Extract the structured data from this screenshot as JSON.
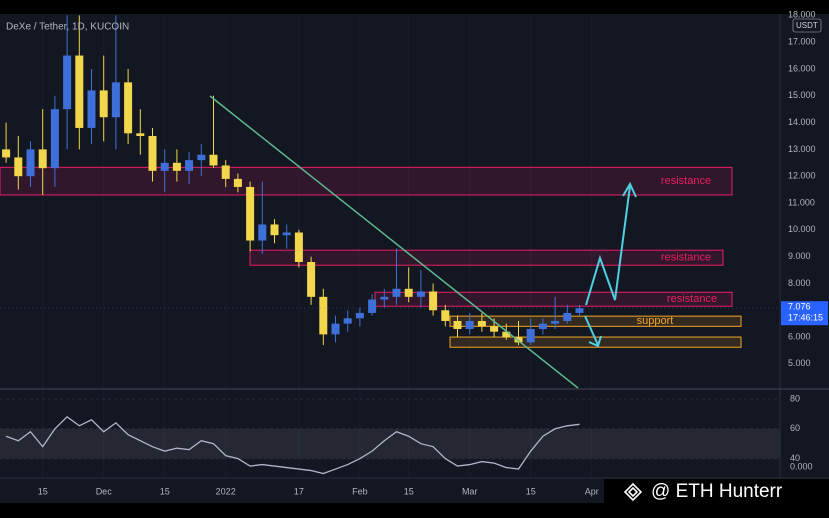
{
  "header": {
    "symbol": "DeXe / Tether, 1D, KUCOIN"
  },
  "watermark": "@ ETH Hunterr",
  "chart_data": {
    "type": "candlestick",
    "categories": [
      null,
      null,
      null,
      "15",
      null,
      null,
      null,
      null,
      "Dec",
      null,
      null,
      null,
      null,
      "15",
      null,
      null,
      null,
      null,
      "2022",
      null,
      null,
      null,
      null,
      null,
      "17",
      null,
      null,
      null,
      null,
      "Feb",
      null,
      null,
      null,
      "15",
      null,
      null,
      null,
      null,
      "Mar",
      null,
      null,
      null,
      null,
      "15",
      null,
      null,
      null,
      null,
      "Apr",
      null
    ],
    "open": [
      13,
      12.7,
      12,
      13,
      12.3,
      14.5,
      16.5,
      13.8,
      15.2,
      14.2,
      15.5,
      13.6,
      13.5,
      12.2,
      12.5,
      12.2,
      12.6,
      12.8,
      12.4,
      11.9,
      11.6,
      9.6,
      10.2,
      9.8,
      9.9,
      8.8,
      7.5,
      6.1,
      6.5,
      6.7,
      6.9,
      7.4,
      7.5,
      7.8,
      7.5,
      7.7,
      7.0,
      6.6,
      6.3,
      6.6,
      6.4,
      6.2,
      6.0,
      5.8,
      6.3,
      6.5,
      6.6,
      6.9,
      null,
      null
    ],
    "high": [
      14,
      13.5,
      13.3,
      14.5,
      15,
      18,
      18,
      16,
      16.5,
      18,
      16,
      14.5,
      13.8,
      13,
      13,
      12.9,
      13.2,
      15,
      12.6,
      12.1,
      11.8,
      11.8,
      10.4,
      10.2,
      10,
      9,
      7.8,
      6.8,
      7.0,
      7.1,
      7.6,
      7.8,
      9.3,
      8.6,
      8.5,
      8,
      7.2,
      6.8,
      6.9,
      6.9,
      6.7,
      6.5,
      6.6,
      6.7,
      6.7,
      7.5,
      7.2,
      7.2,
      null,
      null
    ],
    "low": [
      12.5,
      11.5,
      11.6,
      11.3,
      11.6,
      13,
      13,
      13.2,
      13.3,
      13,
      13.2,
      12.8,
      11.8,
      11.4,
      11.8,
      11.7,
      12.0,
      12.3,
      11.6,
      11.4,
      9.2,
      9.1,
      9.5,
      9.3,
      8.6,
      7.2,
      5.7,
      5.8,
      6.2,
      6.4,
      6.8,
      7.1,
      7.2,
      7.3,
      7.1,
      6.8,
      6.4,
      6.0,
      6.1,
      6.2,
      6.0,
      5.9,
      5.7,
      5.7,
      6.1,
      6.3,
      6.5,
      6.8,
      null,
      null
    ],
    "close": [
      12.7,
      12.0,
      13.0,
      12.3,
      14.5,
      16.5,
      13.8,
      15.2,
      14.2,
      15.5,
      13.6,
      13.5,
      12.2,
      12.5,
      12.2,
      12.6,
      12.8,
      12.4,
      11.9,
      11.6,
      9.6,
      10.2,
      9.8,
      9.9,
      8.8,
      7.5,
      6.1,
      6.5,
      6.7,
      6.9,
      7.4,
      7.5,
      7.8,
      7.5,
      7.7,
      7.0,
      6.6,
      6.3,
      6.6,
      6.4,
      6.2,
      6.0,
      5.8,
      6.3,
      6.5,
      6.6,
      6.9,
      7.076,
      null,
      null
    ],
    "up_color": "#3f6fd8",
    "down_color": "#f2d64b",
    "ylim": [
      4.1,
      18.05
    ],
    "yticks": [
      {
        "value": 18,
        "label": "18.000"
      },
      {
        "value": 17,
        "label": "17.000"
      },
      {
        "value": 16,
        "label": "16.000"
      },
      {
        "value": 15,
        "label": "15.000"
      },
      {
        "value": 14,
        "label": "14.000"
      },
      {
        "value": 13,
        "label": "13.000"
      },
      {
        "value": 12,
        "label": "12.000"
      },
      {
        "value": 11,
        "label": "11.000"
      },
      {
        "value": 10,
        "label": "10.000"
      },
      {
        "value": 9,
        "label": "9.000"
      },
      {
        "value": 8,
        "label": "8.000"
      },
      {
        "value": 6,
        "label": "6.000"
      },
      {
        "value": 5,
        "label": "5.000"
      }
    ],
    "currency_label": "USDT",
    "countdown": "17:46:15",
    "grid": true,
    "zones": [
      {
        "label": "resistance",
        "range": [
          11.3,
          12.33
        ],
        "color": "#e91e63"
      },
      {
        "label": "resistance",
        "range": [
          8.68,
          9.24
        ],
        "color": "#e91e63"
      },
      {
        "label": "resistance",
        "range": [
          7.15,
          7.67
        ],
        "color": "#e91e63"
      },
      {
        "label": "support",
        "range": [
          6.4,
          6.78
        ],
        "color": "#f5a623"
      },
      {
        "range": [
          5.62,
          6.0
        ],
        "color": "#f5a623"
      }
    ],
    "indicator": {
      "type": "line",
      "color": "#b0b6c8",
      "values": [
        55,
        52,
        58,
        48,
        60,
        68,
        62,
        66,
        58,
        64,
        56,
        52,
        48,
        45,
        47,
        46,
        52,
        50,
        42,
        40,
        35,
        36,
        35,
        34,
        33,
        32,
        30,
        33,
        36,
        40,
        45,
        52,
        58,
        55,
        50,
        48,
        40,
        35,
        36,
        38,
        37,
        34,
        33,
        45,
        55,
        60,
        62,
        63,
        null,
        null
      ],
      "ylim": [
        27,
        86
      ],
      "yticks": [
        80,
        60,
        40
      ],
      "band": [
        40,
        60
      ],
      "extra_label": "0.000"
    }
  }
}
